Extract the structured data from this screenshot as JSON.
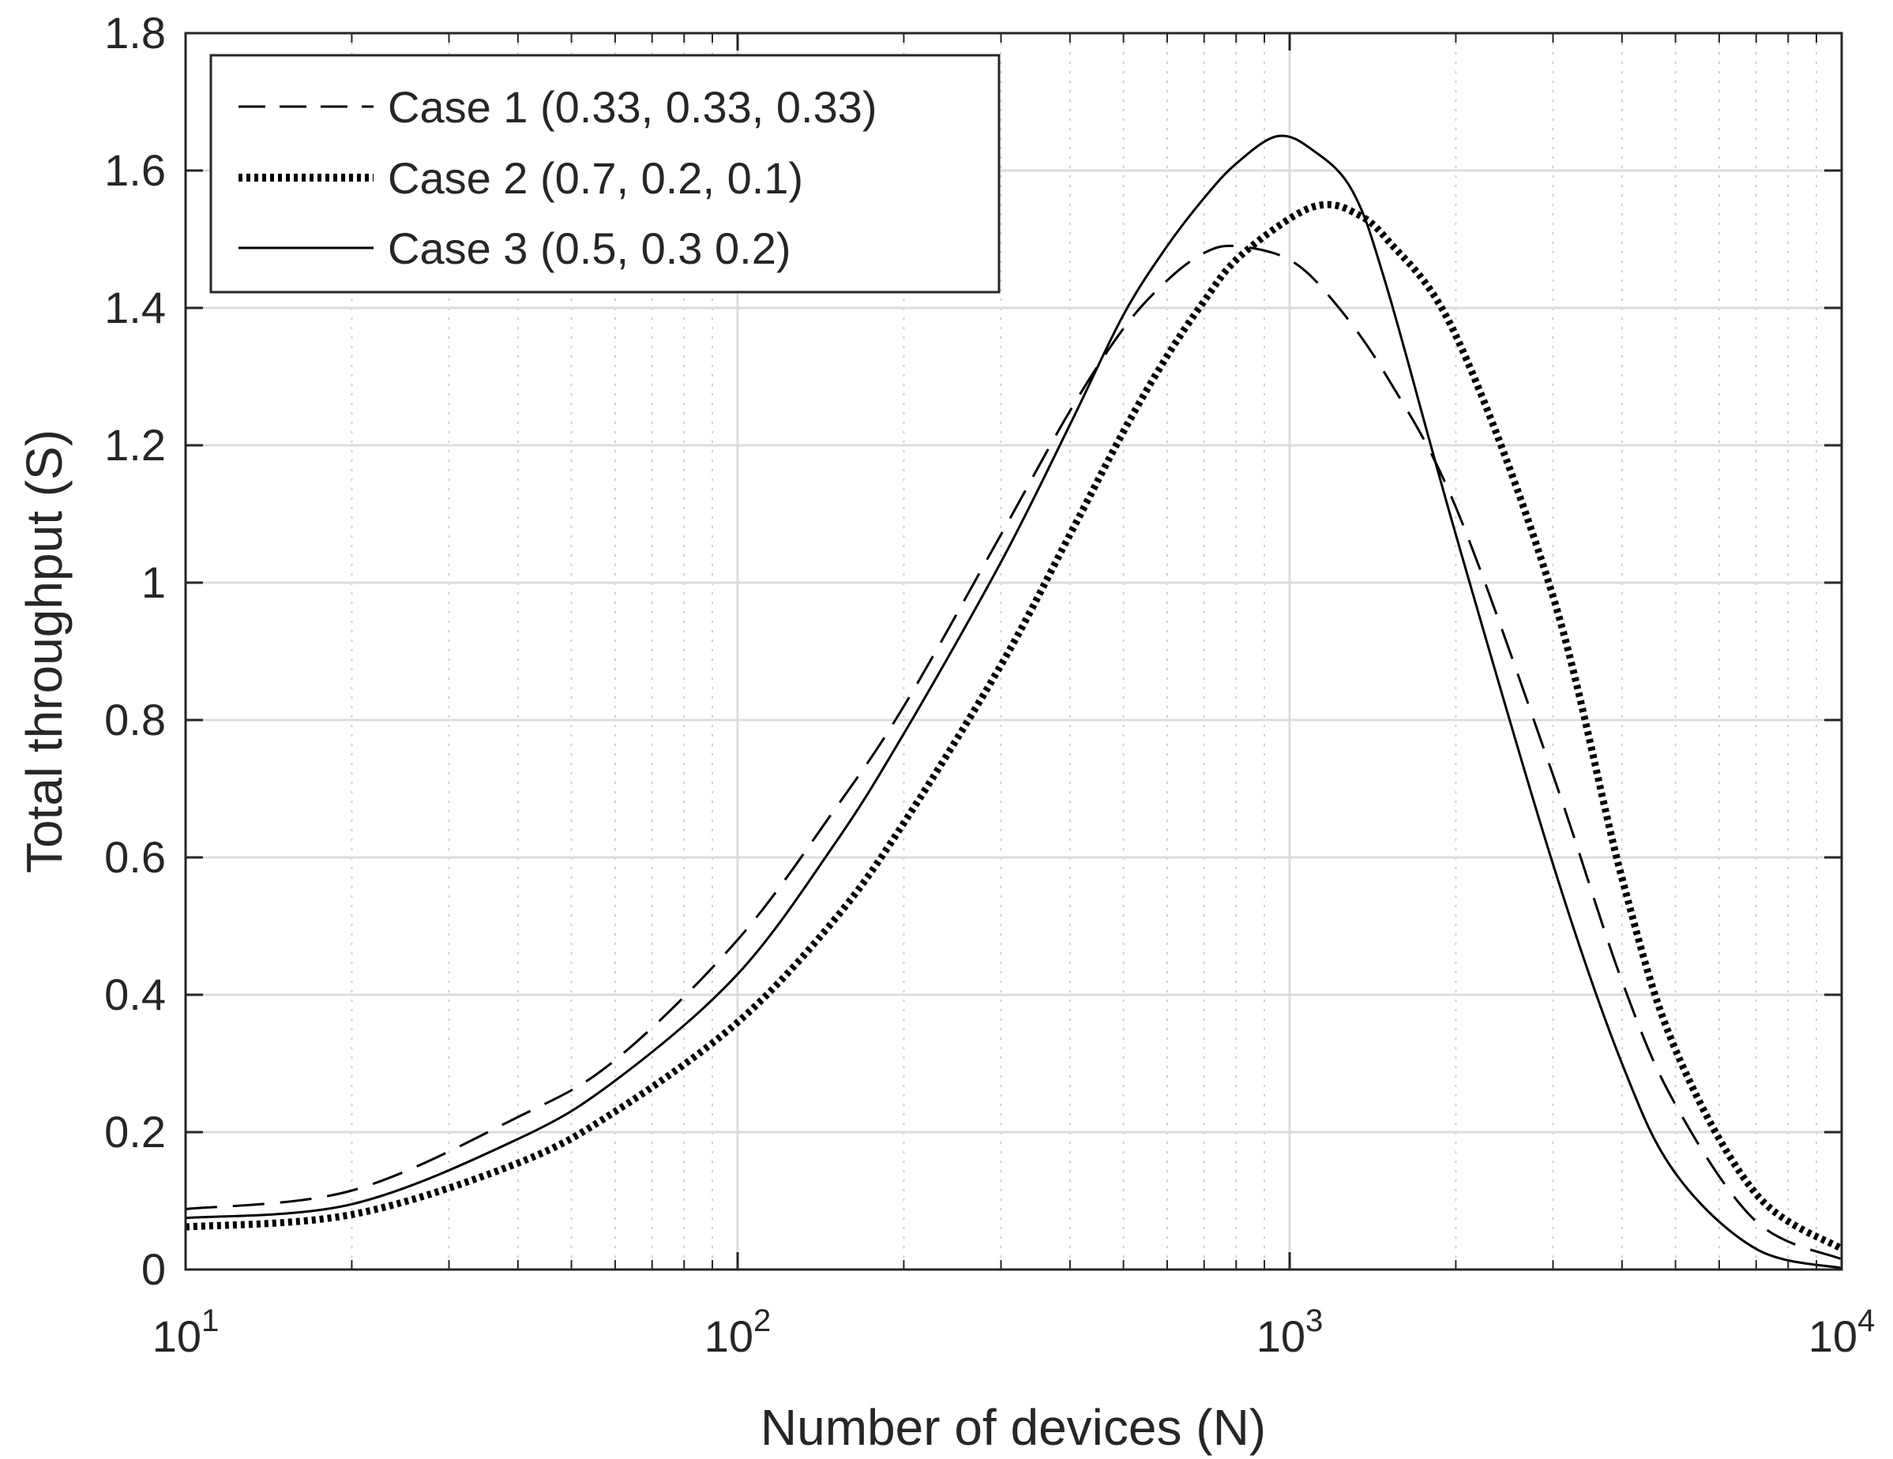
{
  "chart_data": {
    "type": "line",
    "xlabel": "Number of devices (N)",
    "ylabel": "Total throughput (S)",
    "xscale": "log",
    "xlim": [
      10,
      10000
    ],
    "ylim": [
      0,
      1.8
    ],
    "x_ticks": [
      {
        "base": "10",
        "exp": "1"
      },
      {
        "base": "10",
        "exp": "2"
      },
      {
        "base": "10",
        "exp": "3"
      },
      {
        "base": "10",
        "exp": "4"
      }
    ],
    "y_ticks": [
      "0",
      "0.2",
      "0.4",
      "0.6",
      "0.8",
      "1",
      "1.2",
      "1.4",
      "1.6",
      "1.8"
    ],
    "grid": true,
    "minor_grid": true,
    "legend_position": "top-left",
    "series": [
      {
        "name": "Case 1 (0.33, 0.33, 0.33)",
        "style": "dashed",
        "color": "#000000",
        "x": [
          10,
          20,
          40,
          60,
          100,
          150,
          200,
          300,
          400,
          500,
          600,
          700,
          800,
          1000,
          1200,
          1500,
          2000,
          3000,
          4000,
          5000,
          7000,
          10000
        ],
        "y": [
          0.088,
          0.115,
          0.222,
          0.305,
          0.48,
          0.67,
          0.82,
          1.07,
          1.25,
          1.37,
          1.44,
          1.48,
          1.49,
          1.47,
          1.41,
          1.3,
          1.11,
          0.72,
          0.42,
          0.24,
          0.07,
          0.015
        ]
      },
      {
        "name": "Case 2 (0.7, 0.2, 0.1)",
        "style": "dotted",
        "color": "#000000",
        "x": [
          10,
          20,
          40,
          60,
          100,
          150,
          200,
          300,
          400,
          500,
          600,
          700,
          800,
          1000,
          1150,
          1300,
          1500,
          2000,
          3000,
          4000,
          5000,
          7000,
          10000
        ],
        "y": [
          0.062,
          0.08,
          0.155,
          0.23,
          0.36,
          0.51,
          0.65,
          0.88,
          1.07,
          1.22,
          1.33,
          1.41,
          1.47,
          1.53,
          1.55,
          1.54,
          1.5,
          1.36,
          0.98,
          0.57,
          0.32,
          0.11,
          0.03
        ]
      },
      {
        "name": "Case 3 (0.5, 0.3 0.2)",
        "style": "solid",
        "color": "#000000",
        "x": [
          10,
          20,
          40,
          60,
          100,
          150,
          200,
          300,
          400,
          500,
          600,
          700,
          800,
          950,
          1100,
          1300,
          1500,
          2000,
          3000,
          4000,
          5000,
          7000,
          10000
        ],
        "y": [
          0.075,
          0.095,
          0.19,
          0.275,
          0.43,
          0.62,
          0.78,
          1.03,
          1.23,
          1.39,
          1.49,
          1.56,
          1.61,
          1.65,
          1.63,
          1.57,
          1.43,
          1.07,
          0.59,
          0.3,
          0.14,
          0.03,
          0.002
        ]
      }
    ]
  }
}
